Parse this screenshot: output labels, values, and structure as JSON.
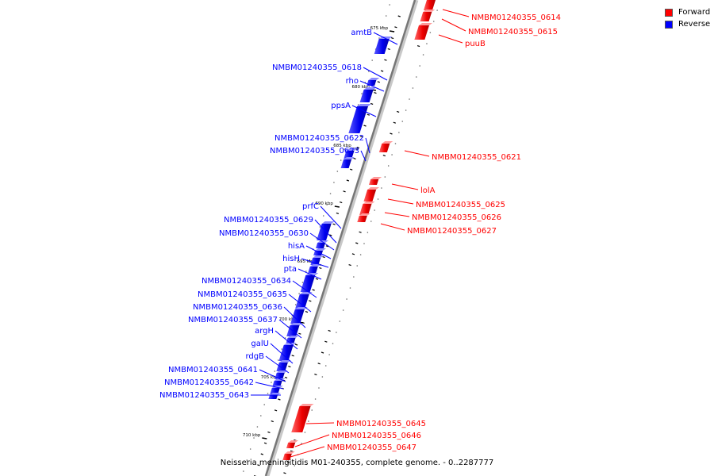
{
  "legend": {
    "forward_label": "Forward",
    "reverse_label": "Reverse",
    "forward_color": "#ff0000",
    "reverse_color": "#0000ff"
  },
  "caption": "Neisseria meningitidis M01-240355, complete genome. - 0..2287777",
  "ruler": {
    "ticks": [
      "675 kbp",
      "680 kbp",
      "685 kbp",
      "690 kbp",
      "695 kbp",
      "700 kbp",
      "705 kbp",
      "710 kbp"
    ]
  },
  "genes_forward": [
    {
      "label": "NMBM01240355_0614"
    },
    {
      "label": "NMBM01240355_0615"
    },
    {
      "label": "puuB"
    },
    {
      "label": "NMBM01240355_0621"
    },
    {
      "label": "lolA"
    },
    {
      "label": "NMBM01240355_0625"
    },
    {
      "label": "NMBM01240355_0626"
    },
    {
      "label": "NMBM01240355_0627"
    },
    {
      "label": "NMBM01240355_0645"
    },
    {
      "label": "NMBM01240355_0646"
    },
    {
      "label": "NMBM01240355_0647"
    }
  ],
  "genes_reverse": [
    {
      "label": "amtB"
    },
    {
      "label": "NMBM01240355_0618"
    },
    {
      "label": "rho"
    },
    {
      "label": "ppsA"
    },
    {
      "label": "NMBM01240355_0622"
    },
    {
      "label": "NMBM01240355_0623"
    },
    {
      "label": "prfC"
    },
    {
      "label": "NMBM01240355_0629"
    },
    {
      "label": "NMBM01240355_0630"
    },
    {
      "label": "hisA"
    },
    {
      "label": "hisH"
    },
    {
      "label": "pta"
    },
    {
      "label": "NMBM01240355_0634"
    },
    {
      "label": "NMBM01240355_0635"
    },
    {
      "label": "NMBM01240355_0636"
    },
    {
      "label": "NMBM01240355_0637"
    },
    {
      "label": "argH"
    },
    {
      "label": "galU"
    },
    {
      "label": "rdgB"
    },
    {
      "label": "NMBM01240355_0641"
    },
    {
      "label": "NMBM01240355_0642"
    },
    {
      "label": "NMBM01240355_0643"
    }
  ]
}
